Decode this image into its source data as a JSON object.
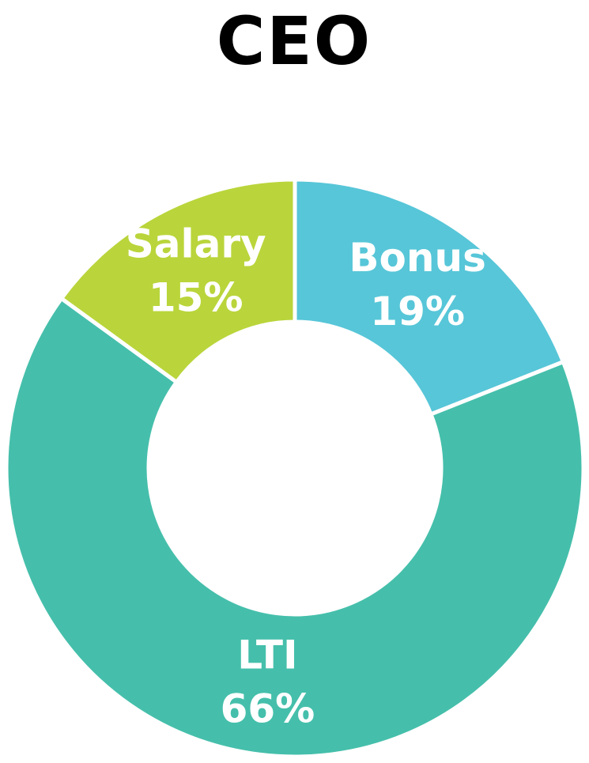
{
  "chart_data": {
    "type": "donut",
    "title": "CEO",
    "categories": [
      "Bonus",
      "LTI",
      "Salary"
    ],
    "values": [
      19,
      66,
      15
    ],
    "value_labels": [
      "19%",
      "66%",
      "15%"
    ],
    "colors": [
      "#57c6d8",
      "#45bfab",
      "#b9d53b"
    ]
  }
}
